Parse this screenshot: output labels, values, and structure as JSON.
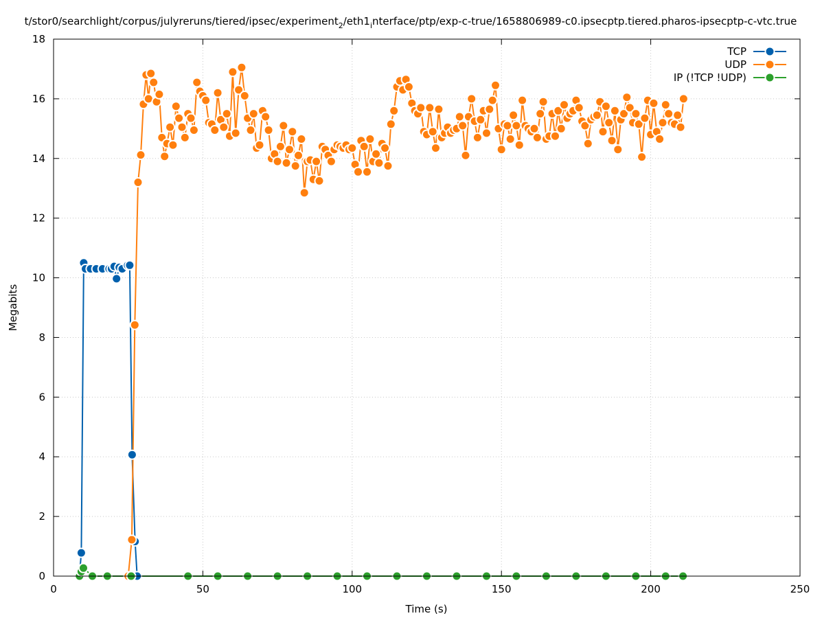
{
  "chart_data": {
    "type": "line",
    "title": "t/stor0/searchlight/corpus/julyreruns/tiered/ipsec/experiment_2/eth1_interface/ptp/exp-c-true/1658806989-c0.ipsecptp.tiered.pharos-ipsecptp-c-vtc.true",
    "title_parts": {
      "p1": "t/stor0/searchlight/corpus/julyreruns/tiered/ipsec/experiment",
      "sub1": "2",
      "p2": "/eth1",
      "sub2": "i",
      "p3": "nterface/ptp/exp-c-true/1658806989-c0.ipsecptp.tiered.pharos-ipsecptp-c-vtc.true"
    },
    "xlabel": "Time (s)",
    "ylabel": "Megabits",
    "xlim": [
      0,
      250
    ],
    "ylim": [
      0,
      18
    ],
    "xticks": [
      0,
      50,
      100,
      150,
      200,
      250
    ],
    "yticks": [
      0,
      2,
      4,
      6,
      8,
      10,
      12,
      14,
      16,
      18
    ],
    "grid": true,
    "legend_position": "top-right",
    "series": [
      {
        "name": "TCP",
        "color": "#0060ad",
        "x": [
          8.7,
          9.3,
          10.1,
          10.7,
          12.4,
          14.3,
          16.4,
          18.6,
          19.4,
          20.3,
          21.1,
          22.0,
          23.0,
          24.8,
          25.5,
          26.3,
          27.3,
          28.0
        ],
        "y": [
          0.05,
          0.78,
          10.5,
          10.3,
          10.3,
          10.3,
          10.3,
          10.3,
          10.3,
          10.38,
          9.97,
          10.35,
          10.3,
          10.42,
          10.42,
          4.07,
          1.16,
          0.0
        ]
      },
      {
        "name": "UDP",
        "color": "#ff7f0e",
        "x": [
          25.0,
          26.2,
          27.2,
          28.3,
          29.2,
          30.1,
          31.0,
          31.8,
          32.6,
          33.5,
          34.5,
          35.4,
          36.3,
          37.2,
          38.0,
          39.0,
          40.0,
          41.0,
          42.0,
          43.0,
          44.0,
          45.0,
          46.0,
          47.0,
          48.0,
          49.0,
          50.0,
          51.0,
          52.0,
          53.0,
          54.0,
          55.0,
          56.0,
          57.0,
          58.0,
          59.0,
          60.0,
          61.0,
          62.0,
          63.0,
          64.0,
          65.0,
          66.0,
          67.0,
          68.0,
          69.0,
          70.0,
          71.0,
          72.0,
          73.0,
          74.0,
          75.0,
          76.0,
          77.0,
          78.0,
          79.0,
          80.0,
          81.0,
          82.0,
          83.0,
          84.0,
          85.0,
          86.0,
          87.0,
          88.0,
          89.0,
          90.0,
          91.0,
          92.0,
          93.0,
          94.0,
          95.0,
          96.0,
          97.0,
          98.0,
          99.0,
          100.0,
          101.0,
          102.0,
          103.0,
          104.0,
          105.0,
          106.0,
          107.0,
          108.0,
          109.0,
          110.0,
          111.0,
          112.0,
          113.0,
          114.0,
          115.0,
          116.0,
          117.0,
          118.0,
          119.0,
          120.0,
          121.0,
          122.0,
          123.0,
          124.0,
          125.0,
          126.0,
          127.0,
          128.0,
          129.0,
          130.0,
          131.0,
          132.0,
          133.0,
          134.0,
          135.0,
          136.0,
          137.0,
          138.0,
          139.0,
          140.0,
          141.0,
          142.0,
          143.0,
          144.0,
          145.0,
          146.0,
          147.0,
          148.0,
          149.0,
          150.0,
          151.0,
          152.0,
          153.0,
          154.0,
          155.0,
          156.0,
          157.0,
          158.0,
          159.0,
          160.0,
          161.0,
          162.0,
          163.0,
          164.0,
          165.0,
          166.0,
          167.0,
          168.0,
          169.0,
          170.0,
          171.0,
          172.0,
          173.0,
          174.0,
          175.0,
          176.0,
          177.0,
          178.0,
          179.0,
          180.0,
          181.0,
          182.0,
          183.0,
          184.0,
          185.0,
          186.0,
          187.0,
          188.0,
          189.0,
          190.0,
          191.0,
          192.0,
          193.0,
          194.0,
          195.0,
          196.0,
          197.0,
          198.0,
          199.0,
          200.0,
          201.0,
          202.0,
          203.0,
          204.0,
          205.0,
          206.0,
          207.0,
          208.0,
          209.0,
          210.0,
          211.0
        ],
        "y": [
          0.0,
          1.22,
          8.42,
          13.2,
          14.12,
          15.82,
          16.8,
          16.0,
          16.85,
          16.55,
          15.9,
          16.15,
          14.7,
          14.07,
          14.5,
          15.05,
          14.45,
          15.75,
          15.35,
          15.05,
          14.7,
          15.5,
          15.35,
          14.95,
          16.55,
          16.25,
          16.1,
          15.95,
          15.2,
          15.15,
          14.95,
          16.2,
          15.3,
          15.05,
          15.5,
          14.75,
          16.9,
          14.85,
          16.3,
          17.05,
          16.1,
          15.35,
          14.95,
          15.5,
          14.35,
          14.45,
          15.6,
          15.4,
          14.95,
          14.0,
          14.15,
          13.9,
          14.4,
          15.1,
          13.85,
          14.3,
          14.9,
          13.75,
          14.1,
          14.65,
          12.85,
          13.9,
          13.95,
          13.3,
          13.9,
          13.25,
          14.4,
          14.3,
          14.1,
          13.9,
          14.3,
          14.45,
          14.4,
          14.35,
          14.45,
          14.3,
          14.35,
          13.8,
          13.55,
          14.6,
          14.4,
          13.55,
          14.65,
          13.9,
          14.15,
          13.85,
          14.5,
          14.35,
          13.75,
          15.15,
          15.6,
          16.4,
          16.6,
          16.3,
          16.65,
          16.4,
          15.85,
          15.6,
          15.5,
          15.7,
          14.9,
          14.8,
          15.7,
          14.9,
          14.35,
          15.65,
          14.7,
          14.85,
          15.05,
          14.85,
          14.95,
          15.0,
          15.4,
          15.1,
          14.1,
          15.4,
          16.0,
          15.25,
          14.7,
          15.3,
          15.6,
          14.85,
          15.65,
          15.95,
          16.45,
          15.0,
          14.3,
          15.15,
          15.1,
          14.65,
          15.45,
          15.1,
          14.45,
          15.95,
          15.1,
          15.0,
          14.9,
          15.0,
          14.7,
          15.5,
          15.9,
          14.65,
          14.75,
          15.5,
          14.75,
          15.6,
          15.0,
          15.8,
          15.35,
          15.5,
          15.6,
          15.95,
          15.7,
          15.25,
          15.1,
          14.5,
          15.3,
          15.4,
          15.45,
          15.9,
          14.9,
          15.75,
          15.2,
          14.6,
          15.6,
          14.3,
          15.3,
          15.5,
          16.05,
          15.7,
          15.2,
          15.5,
          15.15,
          14.05,
          15.35,
          15.95,
          14.8,
          15.85,
          14.9,
          14.65,
          15.2,
          15.8,
          15.5,
          15.2,
          15.15,
          15.45,
          15.05,
          16.0
        ]
      },
      {
        "name": "IP (!TCP  !UDP)",
        "color": "#2ca02c",
        "x": [
          8.7,
          9.3,
          10.0,
          13.0,
          18.0,
          26.0,
          45.0,
          55.0,
          65.0,
          75.0,
          85.0,
          95.0,
          105.0,
          115.0,
          125.0,
          135.0,
          145.0,
          155.0,
          165.0,
          175.0,
          185.0,
          195.0,
          205.0,
          210.8
        ],
        "y": [
          0.0,
          0.15,
          0.27,
          0.0,
          0.0,
          0.0,
          0.0,
          0.0,
          0.0,
          0.0,
          0.0,
          0.0,
          0.0,
          0.0,
          0.0,
          0.0,
          0.0,
          0.0,
          0.0,
          0.0,
          0.0,
          0.0,
          0.0,
          0.0
        ]
      }
    ]
  }
}
